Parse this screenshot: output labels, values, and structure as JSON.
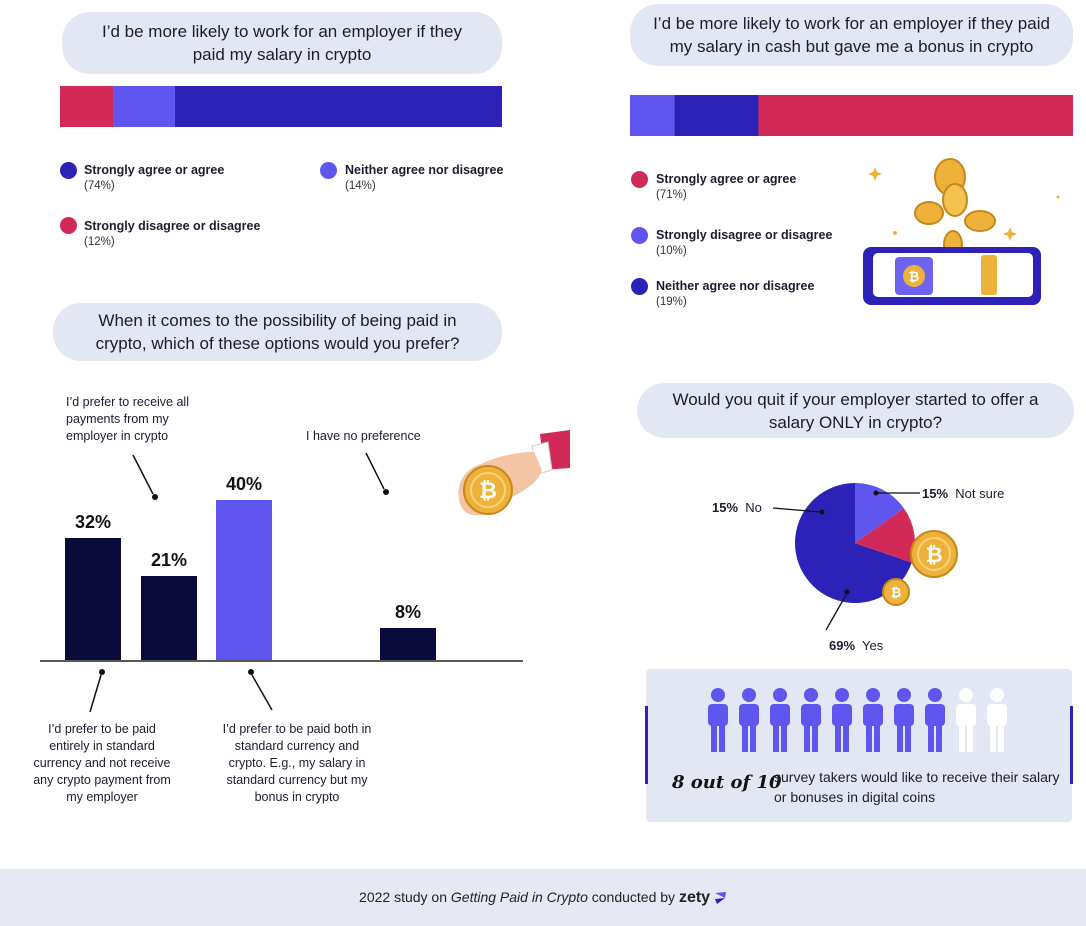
{
  "q1": {
    "question": "I’d be more likely to work for an employer if they paid my salary in crypto",
    "legend": [
      {
        "label": "Strongly agree or agree",
        "pct": "(74%)",
        "color": "#2c22b8"
      },
      {
        "label": "Neither agree nor disagree",
        "pct": "(14%)",
        "color": "#5f56f0"
      },
      {
        "label": "Strongly disagree or disagree",
        "pct": "(12%)",
        "color": "#d22a58"
      }
    ]
  },
  "q2": {
    "question": "I’d be more likely to work for an employer if they paid my salary in cash but gave me a bonus in crypto",
    "legend": [
      {
        "label": "Strongly agree or agree",
        "pct": "(71%)",
        "color": "#d22a58"
      },
      {
        "label": "Strongly disagree or disagree",
        "pct": "(10%)",
        "color": "#5f56f0"
      },
      {
        "label": "Neither agree nor disagree",
        "pct": "(19%)",
        "color": "#2c22b8"
      }
    ]
  },
  "q3": {
    "question": "When it comes to the possibility of being paid in crypto, which of these options would you prefer?",
    "labels": {
      "all_crypto": "I’d prefer to receive all payments from my employer in crypto",
      "no_pref": "I have no preference",
      "standard": "I’d prefer to be paid entirely in standard currency and not receive any crypto payment from my employer",
      "both": "I’d prefer to be paid both in standard currency and crypto. E.g., my salary in standard currency but my bonus in crypto"
    }
  },
  "q4": {
    "question": "Would you quit if your employer started to offer a salary ONLY in crypto?",
    "labels": {
      "no_pct": "15%",
      "no": "No",
      "not_sure_pct": "15%",
      "not_sure": "Not sure",
      "yes_pct": "69%",
      "yes": "Yes"
    }
  },
  "summary": {
    "highlight": "8 out of 10",
    "text": "survey takers would like to receive their salary or bonuses in digital coins",
    "filled": 8,
    "total": 10
  },
  "footer": {
    "prefix": "2022 study on",
    "title": "Getting Paid in Crypto",
    "middle": "conducted by",
    "brand": "zety"
  },
  "chart_data": [
    {
      "type": "bar",
      "orientation": "horizontal-stacked",
      "title": "I’d be more likely to work for an employer if they paid my salary in crypto",
      "series": [
        {
          "name": "Strongly disagree or disagree",
          "values": [
            12
          ],
          "color": "#d22a58"
        },
        {
          "name": "Neither agree nor disagree",
          "values": [
            14
          ],
          "color": "#5f56f0"
        },
        {
          "name": "Strongly agree or agree",
          "values": [
            74
          ],
          "color": "#2c22b8"
        }
      ]
    },
    {
      "type": "bar",
      "orientation": "horizontal-stacked",
      "title": "I’d be more likely to work for an employer if they paid my salary in cash but gave me a bonus in crypto",
      "series": [
        {
          "name": "Strongly disagree or disagree",
          "values": [
            10
          ],
          "color": "#5f56f0"
        },
        {
          "name": "Neither agree nor disagree",
          "values": [
            19
          ],
          "color": "#2c22b8"
        },
        {
          "name": "Strongly agree or agree",
          "values": [
            71
          ],
          "color": "#d22a58"
        }
      ]
    },
    {
      "type": "bar",
      "title": "When it comes to the possibility of being paid in crypto, which of these options would you prefer?",
      "values": [
        32,
        21,
        40,
        8
      ],
      "labels": [
        "32%",
        "21%",
        "40%",
        "8%"
      ],
      "colors": [
        "#0b0b3b",
        "#0b0b3b",
        "#5f56f0",
        "#0b0b3b"
      ],
      "ylim": [
        0,
        40
      ]
    },
    {
      "type": "pie",
      "title": "Would you quit if your employer started to offer a salary ONLY in crypto?",
      "slices": [
        {
          "name": "Yes",
          "value": 69,
          "color": "#2c22b8"
        },
        {
          "name": "No",
          "value": 15,
          "color": "#5f56f0"
        },
        {
          "name": "Not sure",
          "value": 15,
          "color": "#d22a58"
        }
      ]
    }
  ],
  "colors": {
    "dark_navy": "#0b0b3b",
    "royal_blue": "#2c22b8",
    "violet": "#5f56f0",
    "crimson": "#d22a58",
    "coin_gold": "#eeb23a"
  }
}
